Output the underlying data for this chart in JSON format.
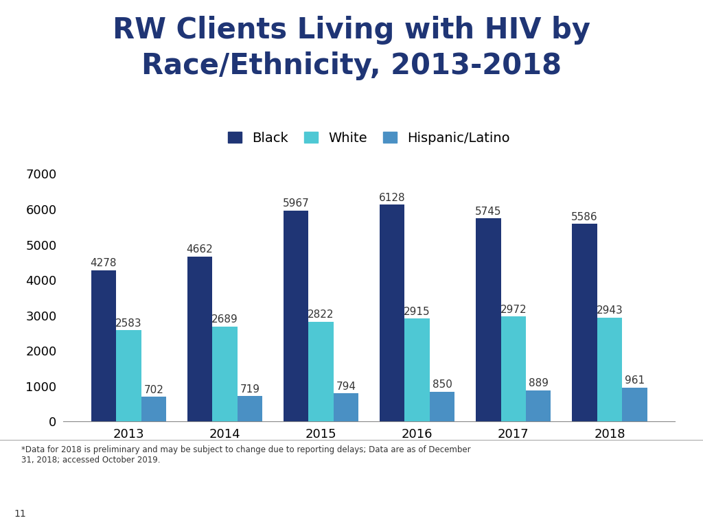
{
  "title": "RW Clients Living with HIV by\nRace/Ethnicity, 2013-2018",
  "years": [
    2013,
    2014,
    2015,
    2016,
    2017,
    2018
  ],
  "black": [
    4278,
    4662,
    5967,
    6128,
    5745,
    5586
  ],
  "white": [
    2583,
    2689,
    2822,
    2915,
    2972,
    2943
  ],
  "hispanic": [
    702,
    719,
    794,
    850,
    889,
    961
  ],
  "colors": {
    "black": "#1F3575",
    "white": "#4EC8D4",
    "hispanic": "#4A90C4"
  },
  "legend_labels": [
    "Black",
    "White",
    "Hispanic/Latino"
  ],
  "ylim": [
    0,
    7000
  ],
  "yticks": [
    0,
    1000,
    2000,
    3000,
    4000,
    5000,
    6000,
    7000
  ],
  "title_color": "#1F3575",
  "title_fontsize": 30,
  "tick_fontsize": 13,
  "label_fontsize": 11,
  "footnote": "*Data for 2018 is preliminary and may be subject to change due to reporting delays; Data are as of December\n31, 2018; accessed October 2019.",
  "page_number": "11",
  "bg_color": "#FFFFFF"
}
